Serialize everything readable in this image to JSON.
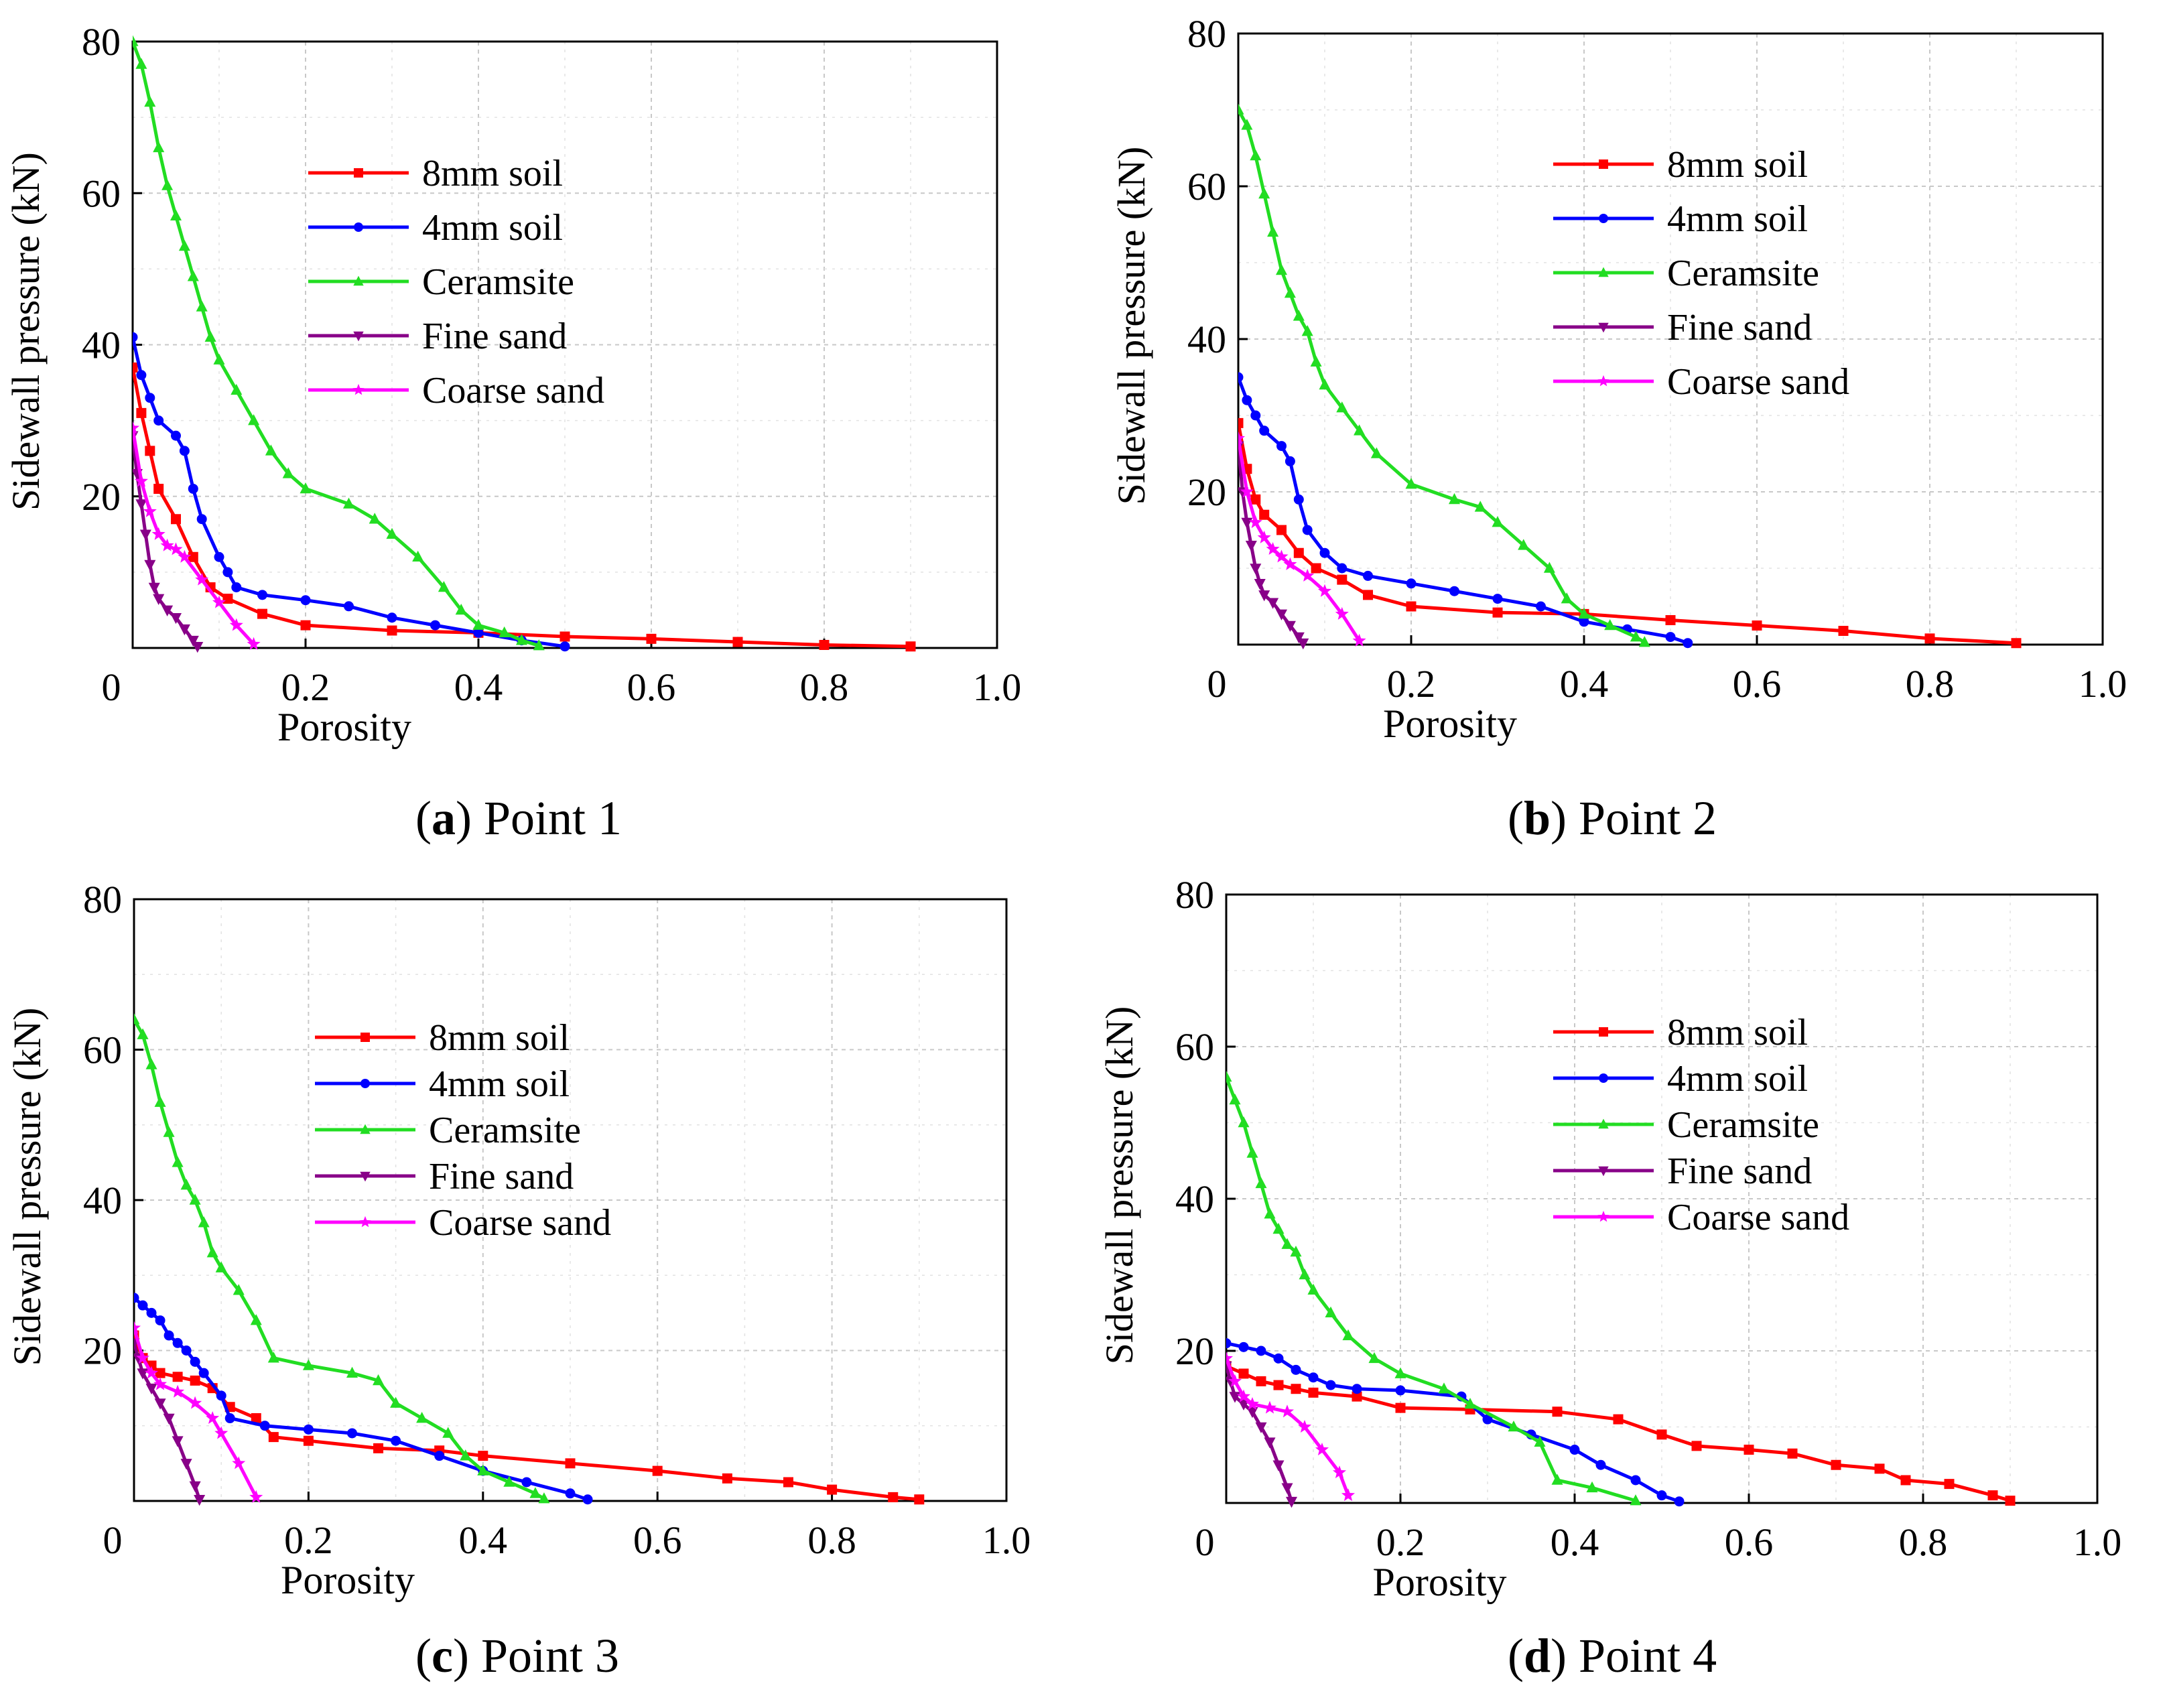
{
  "chart_data": [
    {
      "type": "line",
      "caption": {
        "letter": "a",
        "text": "Point 1"
      },
      "xlabel": "Porosity",
      "ylabel": "Sidewall pressure (kN)",
      "xlim": [
        0,
        1.0
      ],
      "ylim": [
        0,
        80
      ],
      "xticks": [
        "0",
        "0.2",
        "0.4",
        "0.6",
        "0.8",
        "1.0"
      ],
      "yticks": [
        "20",
        "40",
        "60",
        "80"
      ],
      "grid": true,
      "legend": "upper-middle",
      "series": [
        {
          "name": "8mm soil",
          "color": "#ff0000",
          "marker": "square",
          "x": [
            0.0,
            0.01,
            0.02,
            0.03,
            0.05,
            0.07,
            0.09,
            0.11,
            0.15,
            0.2,
            0.3,
            0.4,
            0.5,
            0.6,
            0.7,
            0.8,
            0.9
          ],
          "y": [
            37,
            31,
            26,
            21,
            17,
            12,
            8,
            6.5,
            4.5,
            3,
            2.3,
            2,
            1.5,
            1.2,
            0.8,
            0.4,
            0.2
          ]
        },
        {
          "name": "4mm soil",
          "color": "#0000ff",
          "marker": "circle",
          "x": [
            0.0,
            0.01,
            0.02,
            0.03,
            0.05,
            0.06,
            0.07,
            0.08,
            0.1,
            0.11,
            0.12,
            0.15,
            0.2,
            0.25,
            0.3,
            0.35,
            0.4,
            0.45,
            0.5
          ],
          "y": [
            41,
            36,
            33,
            30,
            28,
            26,
            21,
            17,
            12,
            10,
            8,
            7,
            6.3,
            5.5,
            4,
            3,
            2,
            1,
            0.2
          ]
        },
        {
          "name": "Ceramsite",
          "color": "#22dd22",
          "marker": "triangle",
          "x": [
            0.0,
            0.01,
            0.02,
            0.03,
            0.04,
            0.05,
            0.06,
            0.07,
            0.08,
            0.09,
            0.1,
            0.12,
            0.14,
            0.16,
            0.18,
            0.2,
            0.25,
            0.28,
            0.3,
            0.33,
            0.36,
            0.38,
            0.4,
            0.43,
            0.45,
            0.47
          ],
          "y": [
            80,
            77,
            72,
            66,
            61,
            57,
            53,
            49,
            45,
            41,
            38,
            34,
            30,
            26,
            23,
            21,
            19,
            17,
            15,
            12,
            8,
            5,
            3,
            2,
            1,
            0.3
          ]
        },
        {
          "name": "Fine sand",
          "color": "#880088",
          "marker": "triangle-down",
          "x": [
            0.0,
            0.005,
            0.01,
            0.015,
            0.02,
            0.025,
            0.03,
            0.04,
            0.05,
            0.06,
            0.07,
            0.075
          ],
          "y": [
            28,
            23,
            19,
            15,
            11,
            8,
            6.5,
            5,
            4,
            2.5,
            1,
            0.2
          ]
        },
        {
          "name": "Coarse sand",
          "color": "#ff00ff",
          "marker": "star",
          "x": [
            0.0,
            0.01,
            0.02,
            0.03,
            0.04,
            0.05,
            0.06,
            0.08,
            0.1,
            0.12,
            0.14
          ],
          "y": [
            29,
            22,
            18,
            15,
            13.5,
            13,
            12,
            9,
            6,
            3,
            0.5
          ]
        }
      ]
    },
    {
      "type": "line",
      "caption": {
        "letter": "b",
        "text": "Point 2"
      },
      "xlabel": "Porosity",
      "ylabel": "Sidewall pressure (kN)",
      "xlim": [
        0,
        1.0
      ],
      "ylim": [
        0,
        80
      ],
      "xticks": [
        "0",
        "0.2",
        "0.4",
        "0.6",
        "0.8",
        "1.0"
      ],
      "yticks": [
        "20",
        "40",
        "60",
        "80"
      ],
      "grid": true,
      "legend": "upper-middle",
      "series": [
        {
          "name": "8mm soil",
          "color": "#ff0000",
          "marker": "square",
          "x": [
            0.0,
            0.01,
            0.02,
            0.03,
            0.05,
            0.07,
            0.09,
            0.12,
            0.15,
            0.2,
            0.3,
            0.4,
            0.5,
            0.6,
            0.7,
            0.8,
            0.9
          ],
          "y": [
            29,
            23,
            19,
            17,
            15,
            12,
            10,
            8.5,
            6.5,
            5,
            4.2,
            4,
            3.2,
            2.5,
            1.8,
            0.8,
            0.2
          ]
        },
        {
          "name": "4mm soil",
          "color": "#0000ff",
          "marker": "circle",
          "x": [
            0.0,
            0.01,
            0.02,
            0.03,
            0.05,
            0.06,
            0.07,
            0.08,
            0.1,
            0.12,
            0.15,
            0.2,
            0.25,
            0.3,
            0.35,
            0.4,
            0.45,
            0.5,
            0.52
          ],
          "y": [
            35,
            32,
            30,
            28,
            26,
            24,
            19,
            15,
            12,
            10,
            9,
            8,
            7,
            6,
            5,
            3,
            2,
            1,
            0.2
          ]
        },
        {
          "name": "Ceramsite",
          "color": "#22dd22",
          "marker": "triangle",
          "x": [
            0.0,
            0.01,
            0.02,
            0.03,
            0.04,
            0.05,
            0.06,
            0.07,
            0.08,
            0.09,
            0.1,
            0.12,
            0.14,
            0.16,
            0.2,
            0.25,
            0.28,
            0.3,
            0.33,
            0.36,
            0.38,
            0.4,
            0.43,
            0.46,
            0.47
          ],
          "y": [
            70,
            68,
            64,
            59,
            54,
            49,
            46,
            43,
            41,
            37,
            34,
            31,
            28,
            25,
            21,
            19,
            18,
            16,
            13,
            10,
            6,
            4,
            2.5,
            1,
            0.3
          ]
        },
        {
          "name": "Fine sand",
          "color": "#880088",
          "marker": "triangle-down",
          "x": [
            0.0,
            0.005,
            0.01,
            0.015,
            0.02,
            0.025,
            0.03,
            0.04,
            0.05,
            0.06,
            0.07,
            0.075
          ],
          "y": [
            26,
            20,
            16,
            13,
            10,
            8,
            6.5,
            5.5,
            4,
            2.5,
            1,
            0.2
          ]
        },
        {
          "name": "Coarse sand",
          "color": "#ff00ff",
          "marker": "star",
          "x": [
            0.0,
            0.01,
            0.02,
            0.03,
            0.04,
            0.05,
            0.06,
            0.08,
            0.1,
            0.12,
            0.14
          ],
          "y": [
            27,
            20,
            16,
            14,
            12.5,
            11.5,
            10.5,
            9,
            7,
            4,
            0.5
          ]
        }
      ]
    },
    {
      "type": "line",
      "caption": {
        "letter": "c",
        "text": "Point 3"
      },
      "xlabel": "Porosity",
      "ylabel": "Sidewall pressure (kN)",
      "xlim": [
        0,
        1.0
      ],
      "ylim": [
        0,
        80
      ],
      "xticks": [
        "0",
        "0.2",
        "0.4",
        "0.6",
        "0.8",
        "1.0"
      ],
      "yticks": [
        "20",
        "40",
        "60",
        "80"
      ],
      "grid": true,
      "legend": "upper-middle",
      "series": [
        {
          "name": "8mm soil",
          "color": "#ff0000",
          "marker": "square",
          "x": [
            0.0,
            0.01,
            0.02,
            0.03,
            0.05,
            0.07,
            0.09,
            0.11,
            0.14,
            0.16,
            0.2,
            0.28,
            0.35,
            0.4,
            0.5,
            0.6,
            0.68,
            0.75,
            0.8,
            0.87,
            0.9
          ],
          "y": [
            22,
            19,
            18,
            17,
            16.5,
            16,
            15,
            12.5,
            11,
            8.5,
            8,
            7,
            6.7,
            6,
            5,
            4,
            3,
            2.5,
            1.5,
            0.5,
            0.2
          ]
        },
        {
          "name": "4mm soil",
          "color": "#0000ff",
          "marker": "circle",
          "x": [
            0.0,
            0.01,
            0.02,
            0.03,
            0.04,
            0.05,
            0.06,
            0.07,
            0.08,
            0.1,
            0.11,
            0.15,
            0.2,
            0.25,
            0.3,
            0.35,
            0.4,
            0.45,
            0.5,
            0.52
          ],
          "y": [
            27,
            26,
            25,
            24,
            22,
            21,
            20,
            18.5,
            17,
            14,
            11,
            10,
            9.5,
            9,
            8,
            6,
            4,
            2.5,
            1,
            0.2
          ]
        },
        {
          "name": "Ceramsite",
          "color": "#22dd22",
          "marker": "triangle",
          "x": [
            0.0,
            0.01,
            0.02,
            0.03,
            0.04,
            0.05,
            0.06,
            0.07,
            0.08,
            0.09,
            0.1,
            0.12,
            0.14,
            0.16,
            0.2,
            0.25,
            0.28,
            0.3,
            0.33,
            0.36,
            0.38,
            0.4,
            0.43,
            0.46,
            0.47
          ],
          "y": [
            64,
            62,
            58,
            53,
            49,
            45,
            42,
            40,
            37,
            33,
            31,
            28,
            24,
            19,
            18,
            17,
            16,
            13,
            11,
            9,
            6,
            4,
            2.5,
            1,
            0.3
          ]
        },
        {
          "name": "Fine sand",
          "color": "#880088",
          "marker": "triangle-down",
          "x": [
            0.0,
            0.005,
            0.01,
            0.02,
            0.03,
            0.04,
            0.05,
            0.06,
            0.07,
            0.075
          ],
          "y": [
            21,
            19,
            17,
            15,
            13,
            11,
            8,
            5,
            2,
            0.2
          ]
        },
        {
          "name": "Coarse sand",
          "color": "#ff00ff",
          "marker": "star",
          "x": [
            0.0,
            0.01,
            0.02,
            0.03,
            0.05,
            0.07,
            0.09,
            0.1,
            0.12,
            0.14
          ],
          "y": [
            23,
            19,
            17,
            15.5,
            14.5,
            13,
            11,
            9,
            5,
            0.5
          ]
        }
      ]
    },
    {
      "type": "line",
      "caption": {
        "letter": "d",
        "text": "Point 4"
      },
      "xlabel": "Porosity",
      "ylabel": "Sidewall pressure (kN)",
      "xlim": [
        0,
        1.0
      ],
      "ylim": [
        0,
        80
      ],
      "xticks": [
        "0",
        "0.2",
        "0.4",
        "0.6",
        "0.8",
        "1.0"
      ],
      "yticks": [
        "20",
        "40",
        "60",
        "80"
      ],
      "grid": true,
      "legend": "upper-middle",
      "series": [
        {
          "name": "8mm soil",
          "color": "#ff0000",
          "marker": "square",
          "x": [
            0.0,
            0.02,
            0.04,
            0.06,
            0.08,
            0.1,
            0.15,
            0.2,
            0.28,
            0.38,
            0.45,
            0.5,
            0.54,
            0.6,
            0.65,
            0.7,
            0.75,
            0.78,
            0.83,
            0.88,
            0.9
          ],
          "y": [
            18,
            17,
            16,
            15.5,
            15,
            14.5,
            14,
            12.5,
            12.3,
            12,
            11,
            9,
            7.5,
            7,
            6.5,
            5,
            4.5,
            3,
            2.5,
            1,
            0.3
          ]
        },
        {
          "name": "4mm soil",
          "color": "#0000ff",
          "marker": "circle",
          "x": [
            0.0,
            0.02,
            0.04,
            0.06,
            0.08,
            0.1,
            0.12,
            0.15,
            0.2,
            0.27,
            0.3,
            0.35,
            0.4,
            0.43,
            0.47,
            0.5,
            0.52
          ],
          "y": [
            21,
            20.5,
            20,
            19,
            17.5,
            16.5,
            15.5,
            15,
            14.8,
            14,
            11,
            9,
            7,
            5,
            3,
            1,
            0.2
          ]
        },
        {
          "name": "Ceramsite",
          "color": "#22dd22",
          "marker": "triangle",
          "x": [
            0.0,
            0.01,
            0.02,
            0.03,
            0.04,
            0.05,
            0.06,
            0.07,
            0.08,
            0.09,
            0.1,
            0.12,
            0.14,
            0.17,
            0.2,
            0.25,
            0.28,
            0.33,
            0.36,
            0.38,
            0.42,
            0.47
          ],
          "y": [
            56,
            53,
            50,
            46,
            42,
            38,
            36,
            34,
            33,
            30,
            28,
            25,
            22,
            19,
            17,
            15,
            13,
            10,
            8,
            3,
            2,
            0.3
          ]
        },
        {
          "name": "Fine sand",
          "color": "#880088",
          "marker": "triangle-down",
          "x": [
            0.0,
            0.005,
            0.01,
            0.02,
            0.03,
            0.04,
            0.05,
            0.06,
            0.07,
            0.075
          ],
          "y": [
            18,
            16,
            14,
            13,
            12,
            10,
            8,
            5,
            2,
            0.2
          ]
        },
        {
          "name": "Coarse sand",
          "color": "#ff00ff",
          "marker": "star",
          "x": [
            0.0,
            0.01,
            0.02,
            0.03,
            0.05,
            0.07,
            0.09,
            0.11,
            0.13,
            0.14
          ],
          "y": [
            19,
            16,
            14,
            13,
            12.5,
            12,
            10,
            7,
            4,
            1
          ]
        }
      ]
    }
  ]
}
